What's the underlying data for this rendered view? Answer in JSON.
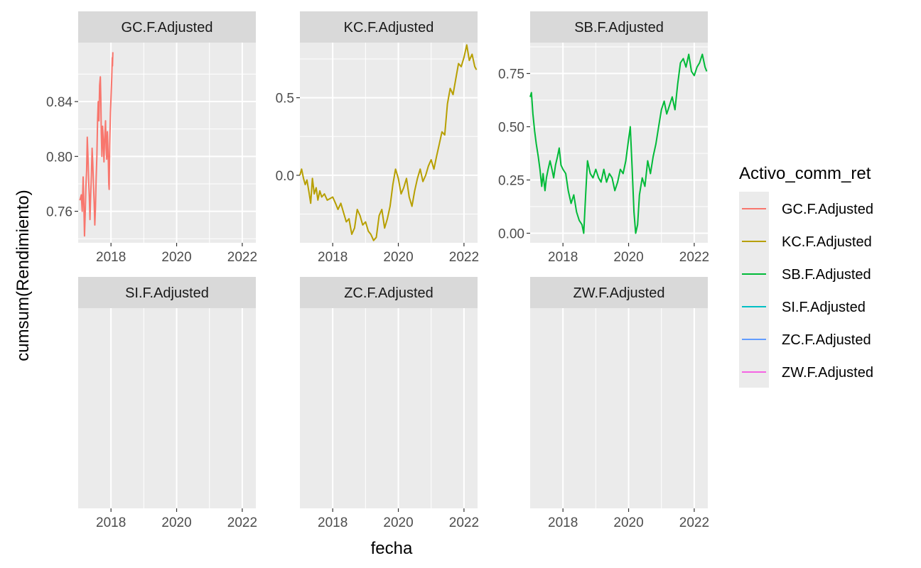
{
  "chart_data": {
    "type": "line",
    "facet_layout": "2x3",
    "xlabel": "fecha",
    "ylabel": "cumsum(Rendimiento)",
    "x_ticks": [
      "2018",
      "2020",
      "2022"
    ],
    "x_range": [
      "2017-01-01",
      "2022-06-01"
    ],
    "legend": {
      "title": "Activo_comm_ret",
      "position": "right",
      "entries": [
        "GC.F.Adjusted",
        "KC.F.Adjusted",
        "SB.F.Adjusted",
        "SI.F.Adjusted",
        "ZC.F.Adjusted",
        "ZW.F.Adjusted"
      ]
    },
    "grid": true,
    "panels": [
      {
        "name": "GC.F.Adjusted",
        "color": "#F8766D",
        "y_ticks": [
          "0.76",
          "0.80",
          "0.84"
        ],
        "ylim": [
          0.737,
          0.883
        ],
        "points": [
          [
            "2017-01-20",
            0.768
          ],
          [
            "2017-02-05",
            0.772
          ],
          [
            "2017-02-15",
            0.76
          ],
          [
            "2017-02-25",
            0.785
          ],
          [
            "2017-03-05",
            0.765
          ],
          [
            "2017-03-12",
            0.742
          ],
          [
            "2017-03-20",
            0.758
          ],
          [
            "2017-03-28",
            0.778
          ],
          [
            "2017-04-05",
            0.79
          ],
          [
            "2017-04-12",
            0.814
          ],
          [
            "2017-04-20",
            0.8
          ],
          [
            "2017-04-28",
            0.782
          ],
          [
            "2017-05-05",
            0.77
          ],
          [
            "2017-05-12",
            0.754
          ],
          [
            "2017-05-20",
            0.772
          ],
          [
            "2017-05-28",
            0.786
          ],
          [
            "2017-06-05",
            0.806
          ],
          [
            "2017-06-12",
            0.796
          ],
          [
            "2017-06-20",
            0.78
          ],
          [
            "2017-06-28",
            0.766
          ],
          [
            "2017-07-05",
            0.75
          ],
          [
            "2017-07-12",
            0.762
          ],
          [
            "2017-07-20",
            0.784
          ],
          [
            "2017-07-28",
            0.8
          ],
          [
            "2017-08-05",
            0.826
          ],
          [
            "2017-08-12",
            0.84
          ],
          [
            "2017-08-20",
            0.826
          ],
          [
            "2017-08-28",
            0.852
          ],
          [
            "2017-09-05",
            0.858
          ],
          [
            "2017-09-10",
            0.842
          ],
          [
            "2017-09-15",
            0.818
          ],
          [
            "2017-09-22",
            0.8
          ],
          [
            "2017-09-30",
            0.822
          ],
          [
            "2017-10-08",
            0.81
          ],
          [
            "2017-10-15",
            0.796
          ],
          [
            "2017-10-22",
            0.812
          ],
          [
            "2017-11-01",
            0.826
          ],
          [
            "2017-11-08",
            0.806
          ],
          [
            "2017-11-15",
            0.798
          ],
          [
            "2017-11-22",
            0.818
          ],
          [
            "2017-12-01",
            0.8
          ],
          [
            "2017-12-08",
            0.78
          ],
          [
            "2017-12-12",
            0.776
          ],
          [
            "2017-12-18",
            0.808
          ],
          [
            "2017-12-26",
            0.832
          ],
          [
            "2018-01-04",
            0.848
          ],
          [
            "2018-01-10",
            0.858
          ],
          [
            "2018-01-15",
            0.872
          ],
          [
            "2018-01-18",
            0.866
          ],
          [
            "2018-01-22",
            0.876
          ]
        ]
      },
      {
        "name": "KC.F.Adjusted",
        "color": "#B79F00",
        "y_ticks": [
          "0.0",
          "0.5"
        ],
        "ylim": [
          -0.435,
          0.855
        ],
        "points": [
          [
            "2017-01-01",
            0.0
          ],
          [
            "2017-01-20",
            0.04
          ],
          [
            "2017-02-10",
            -0.02
          ],
          [
            "2017-03-01",
            -0.06
          ],
          [
            "2017-03-20",
            -0.03
          ],
          [
            "2017-04-10",
            -0.1
          ],
          [
            "2017-05-01",
            -0.18
          ],
          [
            "2017-05-20",
            -0.02
          ],
          [
            "2017-06-10",
            -0.12
          ],
          [
            "2017-07-01",
            -0.08
          ],
          [
            "2017-07-20",
            -0.16
          ],
          [
            "2017-08-10",
            -0.1
          ],
          [
            "2017-09-01",
            -0.14
          ],
          [
            "2017-10-01",
            -0.12
          ],
          [
            "2017-11-01",
            -0.16
          ],
          [
            "2017-12-01",
            -0.15
          ],
          [
            "2018-01-01",
            -0.14
          ],
          [
            "2018-02-01",
            -0.18
          ],
          [
            "2018-03-01",
            -0.22
          ],
          [
            "2018-04-01",
            -0.18
          ],
          [
            "2018-05-01",
            -0.24
          ],
          [
            "2018-06-01",
            -0.3
          ],
          [
            "2018-07-01",
            -0.28
          ],
          [
            "2018-08-01",
            -0.38
          ],
          [
            "2018-09-01",
            -0.34
          ],
          [
            "2018-10-01",
            -0.22
          ],
          [
            "2018-11-01",
            -0.26
          ],
          [
            "2018-12-01",
            -0.32
          ],
          [
            "2019-01-01",
            -0.3
          ],
          [
            "2019-02-01",
            -0.36
          ],
          [
            "2019-03-01",
            -0.38
          ],
          [
            "2019-04-01",
            -0.42
          ],
          [
            "2019-05-01",
            -0.4
          ],
          [
            "2019-06-01",
            -0.26
          ],
          [
            "2019-07-01",
            -0.22
          ],
          [
            "2019-08-01",
            -0.34
          ],
          [
            "2019-09-01",
            -0.28
          ],
          [
            "2019-10-01",
            -0.2
          ],
          [
            "2019-11-01",
            -0.06
          ],
          [
            "2019-12-01",
            0.04
          ],
          [
            "2020-01-01",
            -0.02
          ],
          [
            "2020-02-01",
            -0.12
          ],
          [
            "2020-03-01",
            -0.08
          ],
          [
            "2020-04-01",
            -0.02
          ],
          [
            "2020-05-01",
            -0.14
          ],
          [
            "2020-06-01",
            -0.2
          ],
          [
            "2020-07-01",
            -0.1
          ],
          [
            "2020-08-01",
            -0.02
          ],
          [
            "2020-09-01",
            0.04
          ],
          [
            "2020-10-01",
            -0.04
          ],
          [
            "2020-11-01",
            0.0
          ],
          [
            "2020-12-01",
            0.06
          ],
          [
            "2021-01-01",
            0.1
          ],
          [
            "2021-02-01",
            0.04
          ],
          [
            "2021-03-01",
            0.12
          ],
          [
            "2021-04-01",
            0.2
          ],
          [
            "2021-05-01",
            0.28
          ],
          [
            "2021-06-01",
            0.26
          ],
          [
            "2021-07-01",
            0.46
          ],
          [
            "2021-08-01",
            0.56
          ],
          [
            "2021-09-01",
            0.52
          ],
          [
            "2021-10-01",
            0.62
          ],
          [
            "2021-11-01",
            0.72
          ],
          [
            "2021-12-01",
            0.7
          ],
          [
            "2022-01-01",
            0.76
          ],
          [
            "2022-02-01",
            0.84
          ],
          [
            "2022-03-01",
            0.74
          ],
          [
            "2022-04-01",
            0.78
          ],
          [
            "2022-05-01",
            0.7
          ],
          [
            "2022-05-20",
            0.68
          ]
        ]
      },
      {
        "name": "SB.F.Adjusted",
        "color": "#00BA38",
        "y_ticks": [
          "0.00",
          "0.25",
          "0.50",
          "0.75"
        ],
        "ylim": [
          -0.045,
          0.895
        ],
        "points": [
          [
            "2017-01-01",
            0.64
          ],
          [
            "2017-01-15",
            0.66
          ],
          [
            "2017-02-01",
            0.56
          ],
          [
            "2017-02-20",
            0.48
          ],
          [
            "2017-03-10",
            0.42
          ],
          [
            "2017-04-01",
            0.36
          ],
          [
            "2017-04-20",
            0.3
          ],
          [
            "2017-05-10",
            0.22
          ],
          [
            "2017-05-25",
            0.28
          ],
          [
            "2017-06-15",
            0.2
          ],
          [
            "2017-07-01",
            0.26
          ],
          [
            "2017-07-20",
            0.3
          ],
          [
            "2017-08-10",
            0.34
          ],
          [
            "2017-09-01",
            0.3
          ],
          [
            "2017-09-20",
            0.26
          ],
          [
            "2017-10-10",
            0.32
          ],
          [
            "2017-11-01",
            0.36
          ],
          [
            "2017-11-20",
            0.4
          ],
          [
            "2017-12-10",
            0.32
          ],
          [
            "2018-01-01",
            0.3
          ],
          [
            "2018-02-01",
            0.28
          ],
          [
            "2018-03-01",
            0.2
          ],
          [
            "2018-04-01",
            0.14
          ],
          [
            "2018-05-01",
            0.18
          ],
          [
            "2018-06-01",
            0.1
          ],
          [
            "2018-07-01",
            0.06
          ],
          [
            "2018-08-01",
            0.04
          ],
          [
            "2018-08-20",
            0.0
          ],
          [
            "2018-09-10",
            0.18
          ],
          [
            "2018-10-01",
            0.34
          ],
          [
            "2018-11-01",
            0.28
          ],
          [
            "2018-12-01",
            0.26
          ],
          [
            "2019-01-01",
            0.3
          ],
          [
            "2019-02-01",
            0.26
          ],
          [
            "2019-03-01",
            0.24
          ],
          [
            "2019-04-01",
            0.3
          ],
          [
            "2019-05-01",
            0.24
          ],
          [
            "2019-06-01",
            0.28
          ],
          [
            "2019-07-01",
            0.26
          ],
          [
            "2019-08-01",
            0.2
          ],
          [
            "2019-09-01",
            0.24
          ],
          [
            "2019-10-01",
            0.3
          ],
          [
            "2019-11-01",
            0.28
          ],
          [
            "2019-12-01",
            0.34
          ],
          [
            "2020-01-01",
            0.44
          ],
          [
            "2020-01-20",
            0.5
          ],
          [
            "2020-02-10",
            0.3
          ],
          [
            "2020-03-01",
            0.1
          ],
          [
            "2020-03-20",
            0.0
          ],
          [
            "2020-04-10",
            0.04
          ],
          [
            "2020-05-01",
            0.18
          ],
          [
            "2020-06-01",
            0.26
          ],
          [
            "2020-07-01",
            0.22
          ],
          [
            "2020-08-01",
            0.34
          ],
          [
            "2020-09-01",
            0.28
          ],
          [
            "2020-10-01",
            0.36
          ],
          [
            "2020-11-01",
            0.42
          ],
          [
            "2020-12-01",
            0.5
          ],
          [
            "2021-01-01",
            0.58
          ],
          [
            "2021-02-01",
            0.62
          ],
          [
            "2021-03-01",
            0.56
          ],
          [
            "2021-04-01",
            0.6
          ],
          [
            "2021-05-01",
            0.64
          ],
          [
            "2021-06-01",
            0.58
          ],
          [
            "2021-07-01",
            0.7
          ],
          [
            "2021-08-01",
            0.8
          ],
          [
            "2021-09-01",
            0.82
          ],
          [
            "2021-10-01",
            0.78
          ],
          [
            "2021-11-01",
            0.84
          ],
          [
            "2021-12-01",
            0.76
          ],
          [
            "2022-01-01",
            0.74
          ],
          [
            "2022-02-01",
            0.78
          ],
          [
            "2022-03-01",
            0.8
          ],
          [
            "2022-04-01",
            0.84
          ],
          [
            "2022-05-01",
            0.78
          ],
          [
            "2022-05-20",
            0.76
          ]
        ]
      },
      {
        "name": "SI.F.Adjusted",
        "color": "#00BFC4",
        "y_ticks": [],
        "ylim": [
          0,
          1
        ],
        "points": []
      },
      {
        "name": "ZC.F.Adjusted",
        "color": "#619CFF",
        "y_ticks": [],
        "ylim": [
          0,
          1
        ],
        "points": []
      },
      {
        "name": "ZW.F.Adjusted",
        "color": "#F564E3",
        "y_ticks": [],
        "ylim": [
          0,
          1
        ],
        "points": []
      }
    ]
  }
}
